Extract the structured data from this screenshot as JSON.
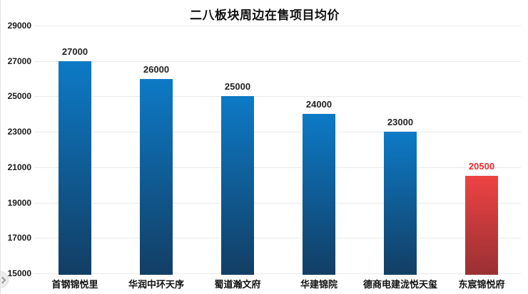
{
  "page": {
    "background": "#ffffff"
  },
  "carousel": {
    "next_button": "next-slide"
  },
  "chart_data": {
    "type": "bar",
    "title": "二八板块周边在售项目均价",
    "categories": [
      "首钢锦悦里",
      "华润中环天序",
      "蜀道瀚文府",
      "华建锦院",
      "德商电建泷悦天玺",
      "东宸锦悦府"
    ],
    "values": [
      27000,
      26000,
      25000,
      24000,
      23000,
      20500
    ],
    "data_labels": [
      "27000",
      "26000",
      "25000",
      "24000",
      "23000",
      "20500"
    ],
    "xlabel": "",
    "ylabel": "",
    "ylim": [
      15000,
      29000
    ],
    "yticks": [
      15000,
      17000,
      19000,
      21000,
      23000,
      25000,
      27000,
      29000
    ],
    "ytick_labels": [
      "15000",
      "17000",
      "19000",
      "21000",
      "23000",
      "25000",
      "27000",
      "29000"
    ],
    "grid": true,
    "legend": "none",
    "highlight_index": 5,
    "colors": {
      "bar_top": "#0d7ac6",
      "bar_bottom": "#123e64",
      "highlight_top": "#ee4343",
      "highlight_bottom": "#993033",
      "label_default": "#222222",
      "label_highlight": "#ed2b2b",
      "gridline": "#e9e9e9",
      "title": "#111111"
    }
  }
}
